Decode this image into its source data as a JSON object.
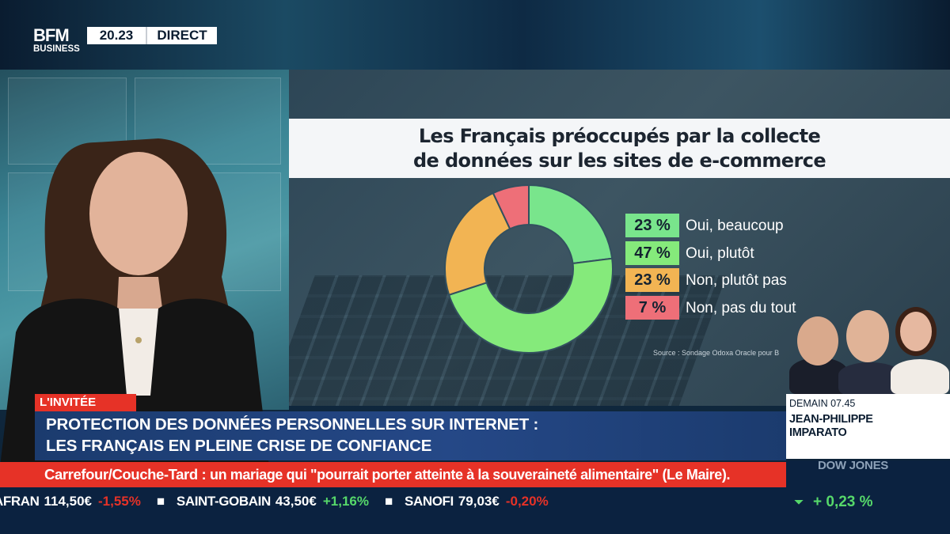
{
  "broadcast": {
    "logo_main": "BFM",
    "logo_sub": "BUSINESS",
    "clock": "20.23",
    "live_label": "DIRECT"
  },
  "chart_data": {
    "type": "pie",
    "style": "donut",
    "title": "Les Français préoccupés par la collecte de données sur les sites de e-commerce",
    "title_lines": [
      "Les Français préoccupés par la collecte",
      "de données sur les sites de e-commerce"
    ],
    "categories": [
      "Oui, beaucoup",
      "Oui, plutôt",
      "Non, plutôt pas",
      "Non, pas du tout"
    ],
    "values": [
      23,
      47,
      23,
      7
    ],
    "value_labels": [
      "23 %",
      "47 %",
      "23 %",
      "7 %"
    ],
    "colors": [
      "#79e58c",
      "#85ea7b",
      "#f2b453",
      "#ee6f78"
    ],
    "legend_position": "right",
    "source": "Source : Sondage Odoxa Oracle pour B"
  },
  "next_show": {
    "when": "DEMAIN 07.45",
    "host_lines": [
      "JEAN-PHILIPPE",
      "IMPARATO"
    ]
  },
  "lower_third": {
    "tag": "L'INVITÉE",
    "headline_line1": "PROTECTION DES DONNÉES PERSONNELLES SUR INTERNET :",
    "headline_line2": "LES FRANÇAIS EN PLEINE CRISE DE CONFIANCE"
  },
  "news_ticker": {
    "source": "Carrefour/Couche-Tard :",
    "text": "un mariage qui \"pourrait porter atteinte à la souveraineté alimentaire\" (Le Maire)."
  },
  "market_ticker": [
    {
      "name": "AFRAN",
      "price": "114,50€",
      "change": "-1,55%",
      "direction": "down"
    },
    {
      "name": "SAINT-GOBAIN",
      "price": "43,50€",
      "change": "+1,16%",
      "direction": "up"
    },
    {
      "name": "SANOFI",
      "price": "79,03€",
      "change": "-0,20%",
      "direction": "down"
    }
  ],
  "index_box": {
    "name": "DOW JONES",
    "change": "+ 0,23 %",
    "direction": "up"
  }
}
